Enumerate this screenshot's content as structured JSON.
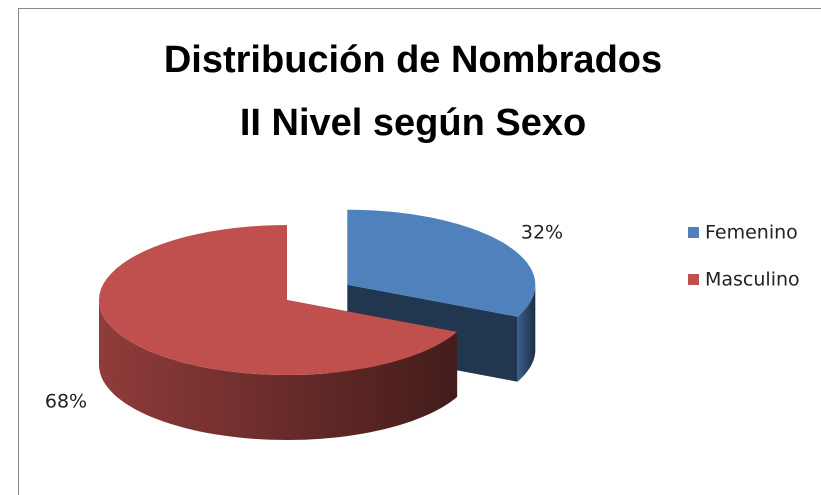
{
  "chart_data": {
    "type": "pie",
    "title": [
      "Distribución de Nombrados",
      "II Nivel según Sexo"
    ],
    "categories": [
      "Femenino",
      "Masculino"
    ],
    "values": [
      32,
      68
    ],
    "value_labels": [
      "32%",
      "68%"
    ],
    "colors": [
      "#4f81bd",
      "#c0504d"
    ],
    "exploded": [
      true,
      false
    ],
    "legend": "right",
    "three_d": true
  }
}
